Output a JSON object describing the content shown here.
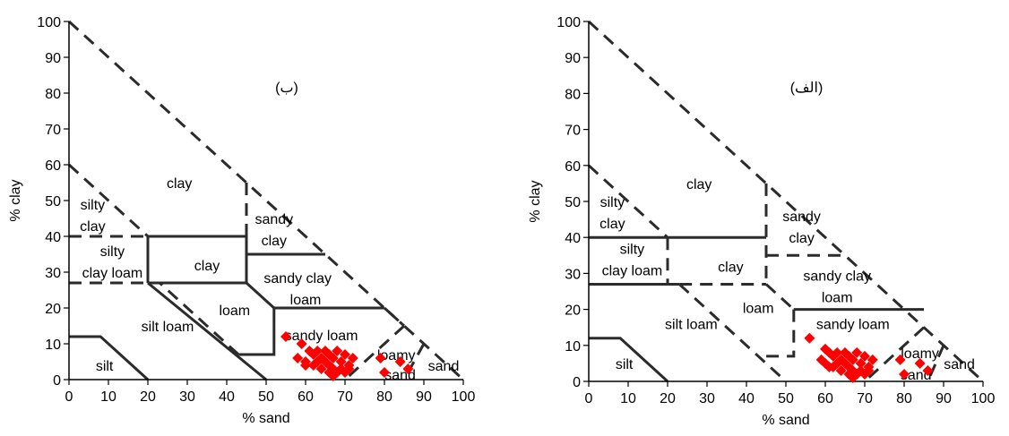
{
  "colors": {
    "boundary": "#2b2b2b",
    "points": "#ff0000",
    "axis": "#000000"
  },
  "chart_data": [
    {
      "type": "scatter",
      "title": "(ب)",
      "xlabel": "% sand",
      "ylabel": "% clay",
      "xlim": [
        0,
        100
      ],
      "ylim": [
        0,
        100
      ],
      "xticks": [
        "0",
        "10",
        "20",
        "30",
        "40",
        "50",
        "60",
        "70",
        "80",
        "90",
        "100"
      ],
      "yticks": [
        "0",
        "10",
        "20",
        "30",
        "40",
        "50",
        "60",
        "70",
        "80",
        "90",
        "100"
      ],
      "regions": [
        {
          "label": "clay",
          "x": 28,
          "y": 55
        },
        {
          "label": "silty",
          "x": 6,
          "y": 49
        },
        {
          "label": "clay",
          "x": 6,
          "y": 43
        },
        {
          "label": "sandy",
          "x": 52,
          "y": 45
        },
        {
          "label": "clay",
          "x": 52,
          "y": 39
        },
        {
          "label": "silty",
          "x": 11,
          "y": 36
        },
        {
          "label": "clay loam",
          "x": 11,
          "y": 30
        },
        {
          "label": "clay",
          "x": 35,
          "y": 32
        },
        {
          "label": "sandy clay",
          "x": 58,
          "y": 28.5
        },
        {
          "label": "loam",
          "x": 60,
          "y": 22.5
        },
        {
          "label": "loam",
          "x": 42,
          "y": 19.5
        },
        {
          "label": "silt loam",
          "x": 25,
          "y": 15
        },
        {
          "label": "sandy loam",
          "x": 64,
          "y": 12.5
        },
        {
          "label": "loamy",
          "x": 83,
          "y": 7
        },
        {
          "label": "sand",
          "x": 84,
          "y": 1.5
        },
        {
          "label": "sand",
          "x": 95,
          "y": 4
        },
        {
          "label": "silt",
          "x": 9,
          "y": 4
        }
      ],
      "boundaries": [
        {
          "style": "dashed",
          "points": [
            [
              0,
              100
            ],
            [
              100,
              0
            ]
          ]
        },
        {
          "style": "dashed",
          "points": [
            [
              0,
              60
            ],
            [
              20,
              40
            ]
          ]
        },
        {
          "style": "dashed",
          "points": [
            [
              0,
              40
            ],
            [
              20,
              40
            ]
          ]
        },
        {
          "style": "dashed",
          "points": [
            [
              0,
              27
            ],
            [
              20,
              27
            ]
          ]
        },
        {
          "style": "dashed",
          "points": [
            [
              20,
              40
            ],
            [
              45,
              40
            ]
          ]
        },
        {
          "style": "dashed",
          "points": [
            [
              45,
              55
            ],
            [
              45,
              35
            ]
          ]
        },
        {
          "style": "solid",
          "points": [
            [
              20,
              40
            ],
            [
              20,
              27
            ]
          ]
        },
        {
          "style": "solid",
          "points": [
            [
              20,
              40
            ],
            [
              45,
              40
            ],
            [
              45,
              27
            ],
            [
              20,
              27
            ]
          ]
        },
        {
          "style": "solid",
          "points": [
            [
              45,
              35
            ],
            [
              65,
              35
            ]
          ]
        },
        {
          "style": "solid",
          "points": [
            [
              45,
              27
            ],
            [
              52,
              20
            ],
            [
              80,
              20
            ]
          ]
        },
        {
          "style": "dashed",
          "points": [
            [
              80,
              20
            ],
            [
              85,
              15
            ]
          ]
        },
        {
          "style": "solid",
          "points": [
            [
              52,
              20
            ],
            [
              52,
              7
            ],
            [
              43,
              7
            ]
          ]
        },
        {
          "style": "solid",
          "points": [
            [
              20,
              27
            ],
            [
              50,
              0
            ]
          ]
        },
        {
          "style": "solid",
          "points": [
            [
              0,
              12
            ],
            [
              8,
              12
            ],
            [
              20,
              0
            ]
          ]
        },
        {
          "style": "dashed",
          "points": [
            [
              43,
              7
            ],
            [
              23,
              27
            ]
          ]
        },
        {
          "style": "dashed",
          "points": [
            [
              85,
              15
            ],
            [
              70,
              0
            ]
          ]
        },
        {
          "style": "dashed",
          "points": [
            [
              90,
              10
            ],
            [
              85,
              0
            ]
          ]
        }
      ],
      "points": [
        [
          55,
          12
        ],
        [
          59,
          10
        ],
        [
          61,
          8
        ],
        [
          62,
          7
        ],
        [
          63,
          8
        ],
        [
          64,
          6
        ],
        [
          65,
          8
        ],
        [
          66,
          7
        ],
        [
          67,
          6
        ],
        [
          68,
          8
        ],
        [
          69,
          5
        ],
        [
          70,
          7
        ],
        [
          71,
          4
        ],
        [
          72,
          6
        ],
        [
          60,
          5
        ],
        [
          62,
          4
        ],
        [
          63,
          5
        ],
        [
          64,
          3
        ],
        [
          66,
          4
        ],
        [
          67,
          3
        ],
        [
          68,
          2
        ],
        [
          69,
          3
        ],
        [
          70,
          2
        ],
        [
          71,
          3
        ],
        [
          58,
          6
        ],
        [
          60,
          4
        ],
        [
          65,
          5
        ],
        [
          66,
          2
        ],
        [
          67,
          1
        ],
        [
          79,
          6
        ],
        [
          80,
          2
        ],
        [
          84,
          5
        ],
        [
          86,
          3
        ]
      ]
    },
    {
      "type": "scatter",
      "title": "(الف)",
      "xlabel": "% sand",
      "ylabel": "% clay",
      "xlim": [
        0,
        100
      ],
      "ylim": [
        0,
        100
      ],
      "xticks": [
        "0",
        "10",
        "20",
        "30",
        "40",
        "50",
        "60",
        "70",
        "80",
        "90",
        "100"
      ],
      "yticks": [
        "0",
        "10",
        "20",
        "30",
        "40",
        "50",
        "60",
        "70",
        "80",
        "90",
        "100"
      ],
      "regions": [
        {
          "label": "clay",
          "x": 28,
          "y": 55
        },
        {
          "label": "silty",
          "x": 6,
          "y": 50
        },
        {
          "label": "clay",
          "x": 6,
          "y": 44
        },
        {
          "label": "sandy",
          "x": 54,
          "y": 46
        },
        {
          "label": "clay",
          "x": 54,
          "y": 40
        },
        {
          "label": "silty",
          "x": 11,
          "y": 37
        },
        {
          "label": "clay loam",
          "x": 11,
          "y": 31
        },
        {
          "label": "clay",
          "x": 36,
          "y": 32
        },
        {
          "label": "sandy clay",
          "x": 63,
          "y": 29.5
        },
        {
          "label": "loam",
          "x": 63,
          "y": 23.5
        },
        {
          "label": "loam",
          "x": 43,
          "y": 20.5
        },
        {
          "label": "silt loam",
          "x": 26,
          "y": 16
        },
        {
          "label": "sandy loam",
          "x": 67,
          "y": 16
        },
        {
          "label": "loamy",
          "x": 84,
          "y": 8
        },
        {
          "label": "sand",
          "x": 83,
          "y": 2
        },
        {
          "label": "sand",
          "x": 94,
          "y": 5
        },
        {
          "label": "silt",
          "x": 9,
          "y": 5
        }
      ],
      "boundaries": [
        {
          "style": "dashed",
          "points": [
            [
              0,
              100
            ],
            [
              100,
              0
            ]
          ]
        },
        {
          "style": "dashed",
          "points": [
            [
              0,
              60
            ],
            [
              20,
              40
            ]
          ]
        },
        {
          "style": "solid",
          "points": [
            [
              0,
              40
            ],
            [
              45,
              40
            ]
          ]
        },
        {
          "style": "dashed",
          "points": [
            [
              20,
              40
            ],
            [
              20,
              27
            ]
          ]
        },
        {
          "style": "solid",
          "points": [
            [
              0,
              27
            ],
            [
              23,
              27
            ]
          ]
        },
        {
          "style": "dashed",
          "points": [
            [
              23,
              27
            ],
            [
              45,
              27
            ]
          ]
        },
        {
          "style": "dashed",
          "points": [
            [
              45,
              55
            ],
            [
              45,
              27
            ]
          ]
        },
        {
          "style": "dashed",
          "points": [
            [
              45,
              35
            ],
            [
              65,
              35
            ]
          ]
        },
        {
          "style": "dashed",
          "points": [
            [
              45,
              27
            ],
            [
              52,
              20
            ]
          ]
        },
        {
          "style": "solid",
          "points": [
            [
              52,
              20
            ],
            [
              85,
              20
            ]
          ]
        },
        {
          "style": "dashed",
          "points": [
            [
              52,
              20
            ],
            [
              52,
              7
            ],
            [
              45,
              7
            ]
          ]
        },
        {
          "style": "dashed",
          "points": [
            [
              23,
              27
            ],
            [
              50,
              0
            ]
          ]
        },
        {
          "style": "solid",
          "points": [
            [
              0,
              12
            ],
            [
              8,
              12
            ],
            [
              20,
              0
            ]
          ]
        },
        {
          "style": "dashed",
          "points": [
            [
              85,
              15
            ],
            [
              70,
              0
            ]
          ]
        },
        {
          "style": "dashed",
          "points": [
            [
              90,
              10
            ],
            [
              86,
              0
            ]
          ]
        }
      ],
      "points": [
        [
          56,
          12
        ],
        [
          60,
          9
        ],
        [
          61,
          8
        ],
        [
          62,
          7
        ],
        [
          63,
          8
        ],
        [
          64,
          6
        ],
        [
          65,
          8
        ],
        [
          66,
          7
        ],
        [
          67,
          6
        ],
        [
          68,
          8
        ],
        [
          69,
          5
        ],
        [
          70,
          7
        ],
        [
          71,
          4
        ],
        [
          72,
          6
        ],
        [
          60,
          5
        ],
        [
          62,
          4
        ],
        [
          63,
          5
        ],
        [
          64,
          3
        ],
        [
          66,
          4
        ],
        [
          67,
          3
        ],
        [
          68,
          2
        ],
        [
          69,
          3
        ],
        [
          70,
          2
        ],
        [
          71,
          3
        ],
        [
          59,
          6
        ],
        [
          61,
          4
        ],
        [
          65,
          5
        ],
        [
          66,
          2
        ],
        [
          67,
          1
        ],
        [
          79,
          6
        ],
        [
          80,
          2
        ],
        [
          84,
          5
        ],
        [
          86,
          3
        ]
      ]
    }
  ]
}
